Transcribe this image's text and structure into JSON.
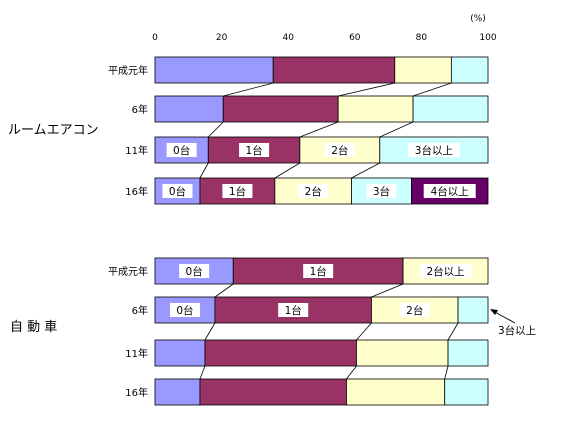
{
  "chart_data": {
    "type": "bar",
    "orientation": "horizontal",
    "stacked": true,
    "percent_axis": [
      0,
      20,
      40,
      60,
      80,
      100
    ],
    "unit": "(%)",
    "xlim": [
      0,
      100
    ],
    "categories_series": [
      "0台",
      "1台",
      "2台",
      "3台以上"
    ],
    "colors": [
      "#9999ff",
      "#993366",
      "#ffffcc",
      "#ccffff"
    ],
    "dark_color": "#660066",
    "groups": [
      {
        "name": "ルームエアコン",
        "rows": [
          {
            "label": "平成元年",
            "values": [
              35.5,
              36.5,
              17.0,
              11.0
            ]
          },
          {
            "label": "6年",
            "values": [
              20.5,
              34.5,
              22.5,
              22.5
            ]
          },
          {
            "label": "11年",
            "values": [
              16.0,
              27.5,
              24.0,
              32.5
            ],
            "segment_labels": [
              "0台",
              "1台",
              "2台",
              "3台以上"
            ]
          },
          {
            "label": "16年",
            "values": [
              13.5,
              22.5,
              23.0,
              18.0,
              23.0
            ],
            "segment_labels": [
              "0台",
              "1台",
              "2台",
              "3台",
              "4台以上"
            ]
          }
        ]
      },
      {
        "name": "自 動 車",
        "rows": [
          {
            "label": "平成元年",
            "values": [
              23.5,
              51.0,
              25.5
            ],
            "segment_labels": [
              "0台",
              "1台",
              "2台以上"
            ]
          },
          {
            "label": "6年",
            "values": [
              18.0,
              47.0,
              26.0,
              9.0
            ],
            "segment_labels": [
              "0台",
              "1台",
              "2台",
              ""
            ]
          },
          {
            "label": "11年",
            "values": [
              15.0,
              45.5,
              27.5,
              12.0
            ]
          },
          {
            "label": "16年",
            "values": [
              13.5,
              44.0,
              29.5,
              13.0
            ]
          }
        ]
      }
    ],
    "annotation": "3台以上"
  }
}
